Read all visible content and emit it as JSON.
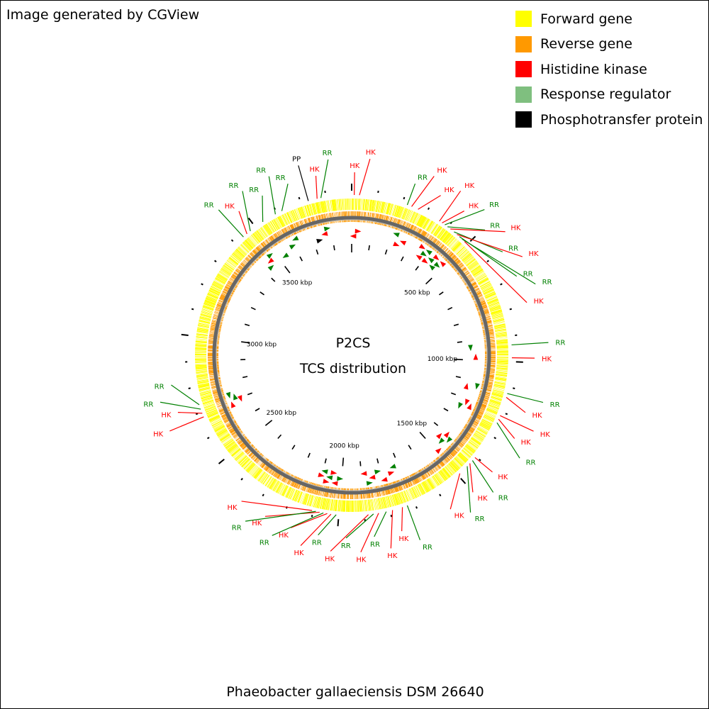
{
  "credit": "Image generated by CGView",
  "legend": [
    {
      "label": "Forward gene",
      "color": "#ffff00"
    },
    {
      "label": "Reverse gene",
      "color": "#ff9900"
    },
    {
      "label": "Histidine kinase",
      "color": "#ff0000"
    },
    {
      "label": "Response regulator",
      "color": "#7fbf7f"
    },
    {
      "label": "Phosphotransfer protein",
      "color": "#000000"
    }
  ],
  "map": {
    "center_title": "P2CS",
    "center_subtitle": "TCS distribution",
    "genome_label": "Phaeobacter gallaeciensis DSM 26640",
    "genome_length_kbp": 3900,
    "tick_labels": [
      "500 kbp",
      "1000 kbp",
      "1500 kbp",
      "2000 kbp",
      "2500 kbp",
      "3000 kbp",
      "3500 kbp"
    ],
    "colors": {
      "forward": "#ffff00",
      "reverse": "#ff9900",
      "backbone": "#777777",
      "HK": "#ff0000",
      "RR": "#008000",
      "PP": "#000000"
    },
    "features": [
      {
        "type": "PP",
        "pos_kbp": 3730
      },
      {
        "type": "HK",
        "pos_kbp": 3765
      },
      {
        "type": "RR",
        "pos_kbp": 3780
      },
      {
        "type": "HK",
        "pos_kbp": 10
      },
      {
        "type": "HK",
        "pos_kbp": 30
      },
      {
        "type": "RR",
        "pos_kbp": 220
      },
      {
        "type": "HK",
        "pos_kbp": 238
      },
      {
        "type": "HK",
        "pos_kbp": 265
      },
      {
        "type": "HK",
        "pos_kbp": 360
      },
      {
        "type": "HK",
        "pos_kbp": 372
      },
      {
        "type": "RR",
        "pos_kbp": 385
      },
      {
        "type": "RR",
        "pos_kbp": 398
      },
      {
        "type": "HK",
        "pos_kbp": 412
      },
      {
        "type": "RR",
        "pos_kbp": 430
      },
      {
        "type": "HK",
        "pos_kbp": 445
      },
      {
        "type": "RR",
        "pos_kbp": 458
      },
      {
        "type": "RR",
        "pos_kbp": 472
      },
      {
        "type": "HK",
        "pos_kbp": 485
      },
      {
        "type": "RR",
        "pos_kbp": 935
      },
      {
        "type": "HK",
        "pos_kbp": 985
      },
      {
        "type": "RR",
        "pos_kbp": 1125
      },
      {
        "type": "HK",
        "pos_kbp": 1140
      },
      {
        "type": "HK",
        "pos_kbp": 1215
      },
      {
        "type": "HK",
        "pos_kbp": 1230
      },
      {
        "type": "RR",
        "pos_kbp": 1245
      },
      {
        "type": "HK",
        "pos_kbp": 1405
      },
      {
        "type": "RR",
        "pos_kbp": 1420
      },
      {
        "type": "HK",
        "pos_kbp": 1435
      },
      {
        "type": "RR",
        "pos_kbp": 1450
      },
      {
        "type": "HK",
        "pos_kbp": 1490
      },
      {
        "type": "RR",
        "pos_kbp": 1730
      },
      {
        "type": "HK",
        "pos_kbp": 1750
      },
      {
        "type": "HK",
        "pos_kbp": 1790
      },
      {
        "type": "RR",
        "pos_kbp": 1815
      },
      {
        "type": "HK",
        "pos_kbp": 1845
      },
      {
        "type": "RR",
        "pos_kbp": 1865
      },
      {
        "type": "HK",
        "pos_kbp": 1885
      },
      {
        "type": "RR",
        "pos_kbp": 2010
      },
      {
        "type": "HK",
        "pos_kbp": 2030
      },
      {
        "type": "HK",
        "pos_kbp": 2045
      },
      {
        "type": "RR",
        "pos_kbp": 2060
      },
      {
        "type": "HK",
        "pos_kbp": 2075
      },
      {
        "type": "RR",
        "pos_kbp": 2090
      },
      {
        "type": "HK",
        "pos_kbp": 2105
      },
      {
        "type": "HK",
        "pos_kbp": 2680
      },
      {
        "type": "HK",
        "pos_kbp": 2695
      },
      {
        "type": "RR",
        "pos_kbp": 2712
      },
      {
        "type": "RR",
        "pos_kbp": 2730
      },
      {
        "type": "RR",
        "pos_kbp": 3440
      },
      {
        "type": "HK",
        "pos_kbp": 3458
      },
      {
        "type": "RR",
        "pos_kbp": 3475
      },
      {
        "type": "RR",
        "pos_kbp": 3535
      },
      {
        "type": "RR",
        "pos_kbp": 3592
      },
      {
        "type": "RR",
        "pos_kbp": 3620
      }
    ]
  }
}
